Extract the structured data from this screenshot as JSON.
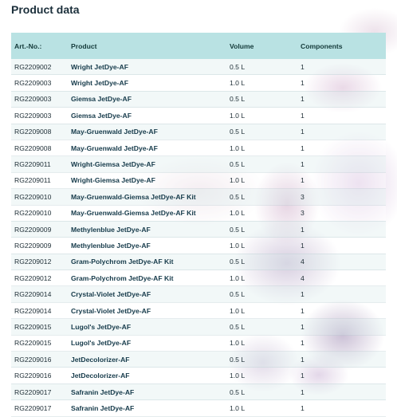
{
  "title": "Product data",
  "headers": {
    "art": "Art.-No.:",
    "product": "Product",
    "volume": "Volume",
    "components": "Components"
  },
  "rows": [
    {
      "art": "RG2209002",
      "product": "Wright JetDye-AF",
      "volume": "0.5 L",
      "components": "1"
    },
    {
      "art": "RG2209003",
      "product": "Wright JetDye-AF",
      "volume": "1.0 L",
      "components": "1"
    },
    {
      "art": "RG2209003",
      "product": "Giemsa JetDye-AF",
      "volume": "0.5 L",
      "components": "1"
    },
    {
      "art": "RG2209003",
      "product": "Giemsa JetDye-AF",
      "volume": "1.0 L",
      "components": "1"
    },
    {
      "art": "RG2209008",
      "product": "May-Gruenwald JetDye-AF",
      "volume": "0.5 L",
      "components": "1"
    },
    {
      "art": "RG2209008",
      "product": "May-Gruenwald JetDye-AF",
      "volume": "1.0 L",
      "components": "1"
    },
    {
      "art": "RG2209011",
      "product": "Wright-Giemsa JetDye-AF",
      "volume": "0.5 L",
      "components": "1"
    },
    {
      "art": "RG2209011",
      "product": "Wright-Giemsa JetDye-AF",
      "volume": "1.0 L",
      "components": "1"
    },
    {
      "art": "RG2209010",
      "product": "May-Gruenwald-Giemsa JetDye-AF Kit",
      "volume": "0.5 L",
      "components": "3"
    },
    {
      "art": "RG2209010",
      "product": "May-Gruenwald-Giemsa JetDye-AF Kit",
      "volume": "1.0 L",
      "components": "3"
    },
    {
      "art": "RG2209009",
      "product": "Methylenblue JetDye-AF",
      "volume": "0.5 L",
      "components": "1"
    },
    {
      "art": "RG2209009",
      "product": "Methylenblue JetDye-AF",
      "volume": "1.0 L",
      "components": "1"
    },
    {
      "art": "RG2209012",
      "product": "Gram-Polychrom JetDye-AF Kit",
      "volume": "0.5 L",
      "components": "4"
    },
    {
      "art": "RG2209012",
      "product": "Gram-Polychrom JetDye-AF Kit",
      "volume": "1.0 L",
      "components": "4"
    },
    {
      "art": "RG2209014",
      "product": "Crystal-Violet JetDye-AF",
      "volume": "0.5 L",
      "components": "1"
    },
    {
      "art": "RG2209014",
      "product": "Crystal-Violet JetDye-AF",
      "volume": "1.0 L",
      "components": "1"
    },
    {
      "art": "RG2209015",
      "product": "Lugol's JetDye-AF",
      "volume": "0.5 L",
      "components": "1"
    },
    {
      "art": "RG2209015",
      "product": "Lugol's JetDye-AF",
      "volume": "1.0 L",
      "components": "1"
    },
    {
      "art": "RG2209016",
      "product": "JetDecolorizer-AF",
      "volume": "0.5 L",
      "components": "1"
    },
    {
      "art": "RG2209016",
      "product": "JetDecolorizer-AF",
      "volume": "1.0 L",
      "components": "1"
    },
    {
      "art": "RG2209017",
      "product": "Safranin JetDye-AF",
      "volume": "0.5 L",
      "components": "1"
    },
    {
      "art": "RG2209017",
      "product": "Safranin JetDye-AF",
      "volume": "1.0 L",
      "components": "1"
    }
  ],
  "colors": {
    "header_bg": "#b9e2e3",
    "title": "#1b2f3b",
    "product_text": "#153a4a"
  }
}
